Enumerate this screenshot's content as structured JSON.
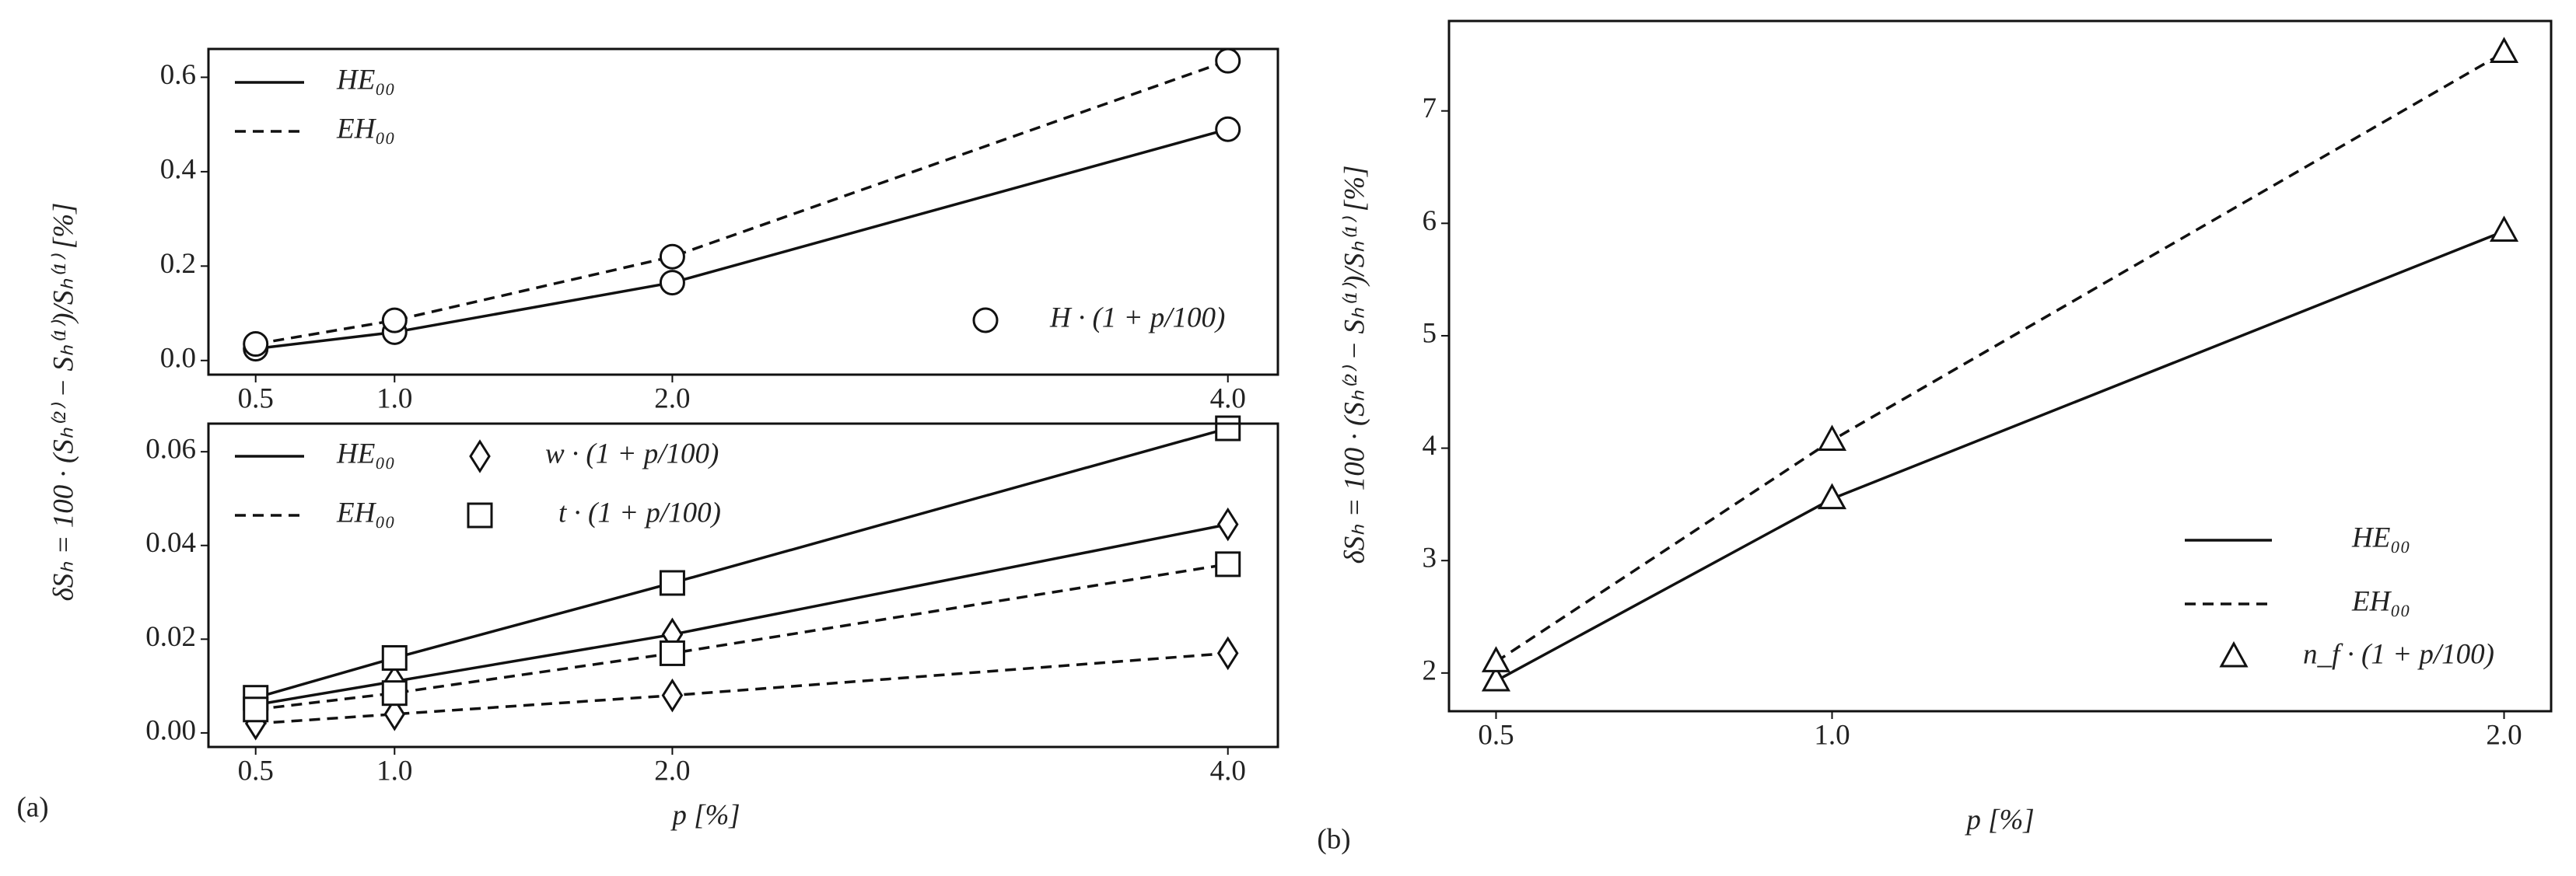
{
  "chart_data": [
    {
      "type": "line",
      "ylabel": "δSₕ = 100 · (Sₕ⁽²⁾ − Sₕ⁽¹⁾)/Sₕ⁽¹⁾ [%]",
      "x": [
        0.5,
        1.0,
        2.0,
        4.0
      ],
      "xlim": [
        0.33,
        4.18
      ],
      "xticks": [
        0.5,
        {
          "value": 1,
          "label": "1.0"
        },
        {
          "value": 2,
          "label": "2.0"
        },
        {
          "value": 4,
          "label": "4.0"
        }
      ],
      "ylim": [
        -0.03,
        0.66
      ],
      "yticks": [
        {
          "value": 0,
          "label": "0.0"
        },
        0.2,
        0.4,
        0.6
      ],
      "series": [
        {
          "line": "HE₀₀",
          "dash": "solid",
          "marker": "H · (1 + p/100)",
          "symbol": "circle",
          "color": "#111111",
          "values": [
            0.025,
            0.06,
            0.165,
            0.49
          ]
        },
        {
          "line": "EH₀₀",
          "dash": "dashed",
          "marker": "H · (1 + p/100)",
          "symbol": "circle",
          "color": "#111111",
          "values": [
            0.035,
            0.085,
            0.22,
            0.635
          ]
        }
      ]
    },
    {
      "type": "line",
      "panel_label": "(a)",
      "xlabel": "p [%]",
      "x": [
        0.5,
        1.0,
        2.0,
        4.0
      ],
      "xlim": [
        0.33,
        4.18
      ],
      "xticks": [
        0.5,
        {
          "value": 1,
          "label": "1.0"
        },
        {
          "value": 2,
          "label": "2.0"
        },
        {
          "value": 4,
          "label": "4.0"
        }
      ],
      "ylim": [
        -0.003,
        0.066
      ],
      "yticks": [
        {
          "value": 0,
          "label": "0.00"
        },
        {
          "value": 0.02,
          "label": "0.02"
        },
        {
          "value": 0.04,
          "label": "0.04"
        },
        {
          "value": 0.06,
          "label": "0.06"
        }
      ],
      "series": [
        {
          "line": "HE₀₀",
          "dash": "solid",
          "marker": "w · (1 + p/100)",
          "symbol": "diamond",
          "color": "#111111",
          "values": [
            0.006,
            0.011,
            0.021,
            0.0445
          ]
        },
        {
          "line": "EH₀₀",
          "dash": "dashed",
          "marker": "w · (1 + p/100)",
          "symbol": "diamond",
          "color": "#111111",
          "values": [
            0.002,
            0.004,
            0.008,
            0.017
          ]
        },
        {
          "line": "HE₀₀",
          "dash": "solid",
          "marker": "t · (1 + p/100)",
          "symbol": "square",
          "color": "#111111",
          "values": [
            0.0075,
            0.016,
            0.032,
            0.065
          ]
        },
        {
          "line": "EH₀₀",
          "dash": "dashed",
          "marker": "t · (1 + p/100)",
          "symbol": "square",
          "color": "#111111",
          "values": [
            0.005,
            0.0085,
            0.017,
            0.036
          ]
        }
      ]
    },
    {
      "type": "line",
      "panel_label": "(b)",
      "xlabel": "p [%]",
      "ylabel": "δSₕ = 100 · (Sₕ⁽²⁾ − Sₕ⁽¹⁾)/Sₕ⁽¹⁾ [%]",
      "x": [
        0.5,
        1.0,
        2.0
      ],
      "xlim": [
        0.43,
        2.07
      ],
      "xticks": [
        0.5,
        {
          "value": 1,
          "label": "1.0"
        },
        {
          "value": 2,
          "label": "2.0"
        }
      ],
      "ylim": [
        1.66,
        7.8
      ],
      "yticks": [
        2,
        3,
        4,
        5,
        6,
        7
      ],
      "series": [
        {
          "line": "HE₀₀",
          "dash": "solid",
          "marker": "n_f · (1 + p/100)",
          "symbol": "triangle",
          "color": "#111111",
          "values": [
            1.93,
            3.55,
            5.93
          ]
        },
        {
          "line": "EH₀₀",
          "dash": "dashed",
          "marker": "n_f · (1 + p/100)",
          "symbol": "triangle",
          "color": "#111111",
          "values": [
            2.1,
            4.07,
            7.52
          ]
        }
      ]
    }
  ]
}
